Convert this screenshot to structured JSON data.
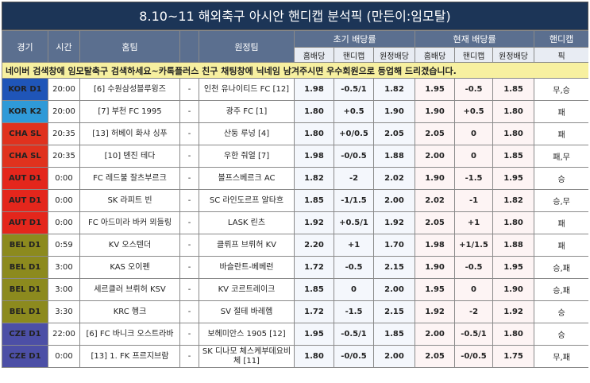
{
  "title": "8.10~11 해외축구 아시안 핸디캡 분석픽 (만든이:임모탈)",
  "header": {
    "league": "경기",
    "time": "시간",
    "home": "홈팀",
    "away": "원정팀",
    "initial": "초기 배당률",
    "current": "현재 배당률",
    "handicap": "핸디캡",
    "sub": [
      "홈배당",
      "핸디캡",
      "원정배당",
      "홈배당",
      "핸디캡",
      "원정배당",
      "픽"
    ]
  },
  "notice": "네이버 검색창에 임모탈축구 검색하세요~카톡플러스 친구 채팅창에 닉네임 남겨주시면 우수회원으로 등업해 드리겠습니다.",
  "rows": [
    {
      "league": "KOR D1",
      "color": "#1f55b8",
      "cells": [
        "20:00",
        "[6] 수원삼성블루윙즈",
        "-",
        "인천 유나이티드 FC [12]",
        "1.98",
        "-0.5/1",
        "1.82",
        "1.95",
        "-0.5",
        "1.85",
        "무,승"
      ]
    },
    {
      "league": "KOR K2",
      "color": "#2f9ad8",
      "cells": [
        "20:00",
        "[7] 부천 FC 1995",
        "-",
        "광주 FC [1]",
        "1.80",
        "+0.5",
        "1.90",
        "1.90",
        "+0.5",
        "1.80",
        "패"
      ]
    },
    {
      "league": "CHA SL",
      "color": "#e0321e",
      "cells": [
        "20:35",
        "[13] 허베이 화샤 싱푸",
        "-",
        "산둥 루넝 [4]",
        "1.80",
        "+0/0.5",
        "2.05",
        "2.05",
        "0",
        "1.80",
        "패"
      ]
    },
    {
      "league": "CHA SL",
      "color": "#e0321e",
      "cells": [
        "20:35",
        "[10] 톈진 테다",
        "-",
        "우한 줘얼 [7]",
        "1.98",
        "-0/0.5",
        "1.88",
        "2.00",
        "0",
        "1.85",
        "패,무"
      ]
    },
    {
      "league": "AUT D1",
      "color": "#e4261c",
      "cells": [
        "0:00",
        "FC 레드불 잘츠부르크",
        "-",
        "볼프스베르크 AC",
        "1.82",
        "-2",
        "2.02",
        "1.90",
        "-1.5",
        "1.95",
        "승"
      ]
    },
    {
      "league": "AUT D1",
      "color": "#e4261c",
      "cells": [
        "0:00",
        "SK 라피트 빈",
        "-",
        "SC 라인도르프 알타흐",
        "1.85",
        "-1/1.5",
        "2.00",
        "2.02",
        "-1",
        "1.82",
        "승,무"
      ]
    },
    {
      "league": "AUT D1",
      "color": "#e4261c",
      "cells": [
        "0:00",
        "FC 아드미라 바커 뫼들링",
        "-",
        "LASK 린츠",
        "1.92",
        "+0.5/1",
        "1.92",
        "2.05",
        "+1",
        "1.80",
        "패"
      ]
    },
    {
      "league": "BEL D1",
      "color": "#8c8a1e",
      "cells": [
        "0:59",
        "KV 오스텐더",
        "-",
        "클뤼프 브뤼허 KV",
        "2.20",
        "+1",
        "1.70",
        "1.98",
        "+1/1.5",
        "1.88",
        "패"
      ]
    },
    {
      "league": "BEL D1",
      "color": "#8c8a1e",
      "cells": [
        "3:00",
        "KAS 오이펜",
        "-",
        "바슬란트-베베런",
        "1.72",
        "-0.5",
        "2.15",
        "1.90",
        "-0.5",
        "1.95",
        "승,패"
      ]
    },
    {
      "league": "BEL D1",
      "color": "#8c8a1e",
      "cells": [
        "3:00",
        "세르클러 브뤼허 KSV",
        "-",
        "KV 코르트레이크",
        "1.85",
        "0",
        "2.00",
        "1.95",
        "0",
        "1.90",
        "승,패"
      ]
    },
    {
      "league": "BEL D1",
      "color": "#8c8a1e",
      "cells": [
        "3:30",
        "KRC 헹크",
        "-",
        "SV 절테 바레헴",
        "1.72",
        "-1.5",
        "2.15",
        "1.92",
        "-2",
        "1.92",
        "승"
      ]
    },
    {
      "league": "CZE D1",
      "color": "#4c4fa6",
      "cells": [
        "22:00",
        "[6] FC 바니크 오스트라바",
        "-",
        "보헤미안스 1905 [12]",
        "1.95",
        "-0.5/1",
        "1.85",
        "2.00",
        "-0.5/1",
        "1.80",
        "승"
      ]
    },
    {
      "league": "CZE D1",
      "color": "#4c4fa6",
      "cells": [
        "0:00",
        "[13] 1. FK 프르지브람",
        "-",
        "SK 디나모 체스케부데요비체 [11]",
        "1.80",
        "-0/0.5",
        "2.00",
        "2.05",
        "-0/0.5",
        "1.75",
        "무,패"
      ]
    }
  ]
}
